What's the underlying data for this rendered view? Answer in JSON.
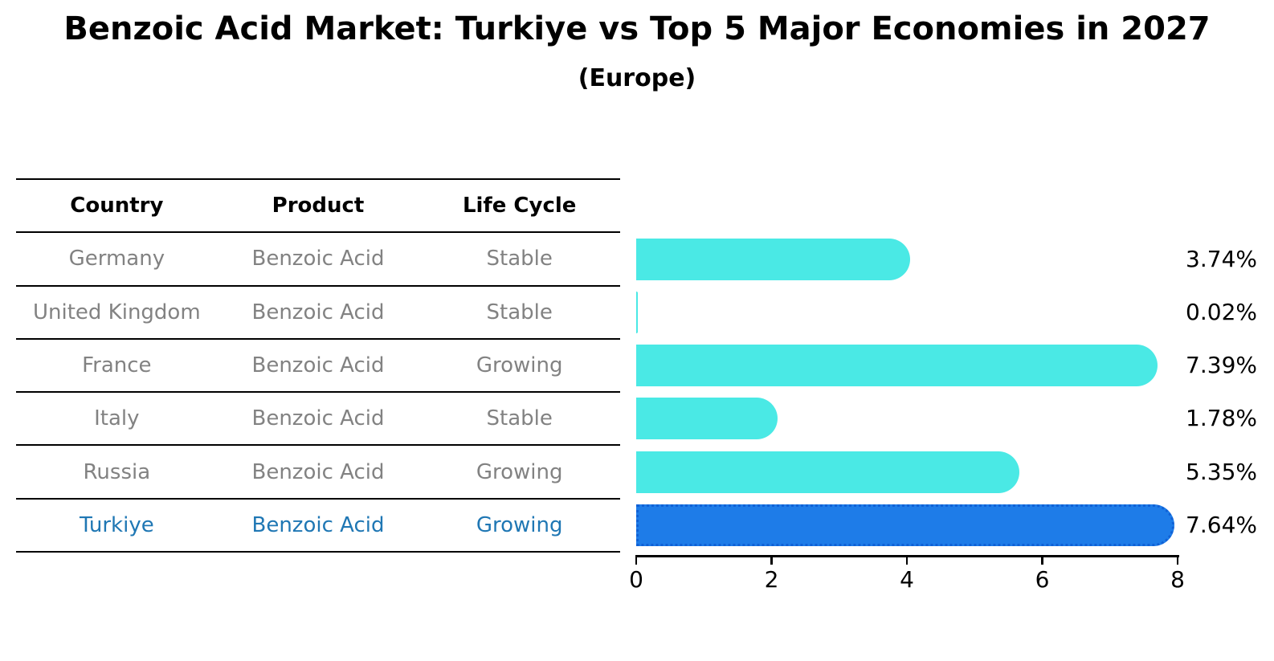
{
  "title": "Benzoic Acid Market: Turkiye vs Top 5 Major Economies in 2027",
  "subtitle": "(Europe)",
  "table": {
    "headers": [
      "Country",
      "Product",
      "Life Cycle"
    ],
    "rows": [
      {
        "country": "Germany",
        "product": "Benzoic Acid",
        "life_cycle": "Stable",
        "highlighted": false
      },
      {
        "country": "United Kingdom",
        "product": "Benzoic Acid",
        "life_cycle": "Stable",
        "highlighted": false
      },
      {
        "country": "France",
        "product": "Benzoic Acid",
        "life_cycle": "Growing",
        "highlighted": false
      },
      {
        "country": "Italy",
        "product": "Benzoic Acid",
        "life_cycle": "Stable",
        "highlighted": false
      },
      {
        "country": "Russia",
        "product": "Benzoic Acid",
        "life_cycle": "Growing",
        "highlighted": false
      },
      {
        "country": "Turkiye",
        "product": "Benzoic Acid",
        "life_cycle": "Growing",
        "highlighted": true
      }
    ]
  },
  "chart_data": {
    "type": "bar",
    "orientation": "horizontal",
    "title": "Benzoic Acid Market: Turkiye vs Top 5 Major Economies in 2027 (Europe)",
    "categories": [
      "Germany",
      "United Kingdom",
      "France",
      "Italy",
      "Russia",
      "Turkiye"
    ],
    "values": [
      3.74,
      0.02,
      7.39,
      1.78,
      5.35,
      7.64
    ],
    "labels": [
      "3.74%",
      "0.02%",
      "7.39%",
      "1.78%",
      "5.35%",
      "7.64%"
    ],
    "highlight_index": 5,
    "xlabel": "",
    "ylabel": "",
    "xlim": [
      0,
      8
    ],
    "x_ticks": [
      0,
      2,
      4,
      6,
      8
    ],
    "grid": false,
    "legend": false,
    "colors": {
      "default_bar": "#4ae9e5",
      "highlight_bar": "#1e7ce8",
      "highlight_border": "#1061d6",
      "highlight_text": "#1f77b4",
      "table_text": "#828282",
      "header_text": "#000000",
      "axis": "#000000"
    }
  }
}
